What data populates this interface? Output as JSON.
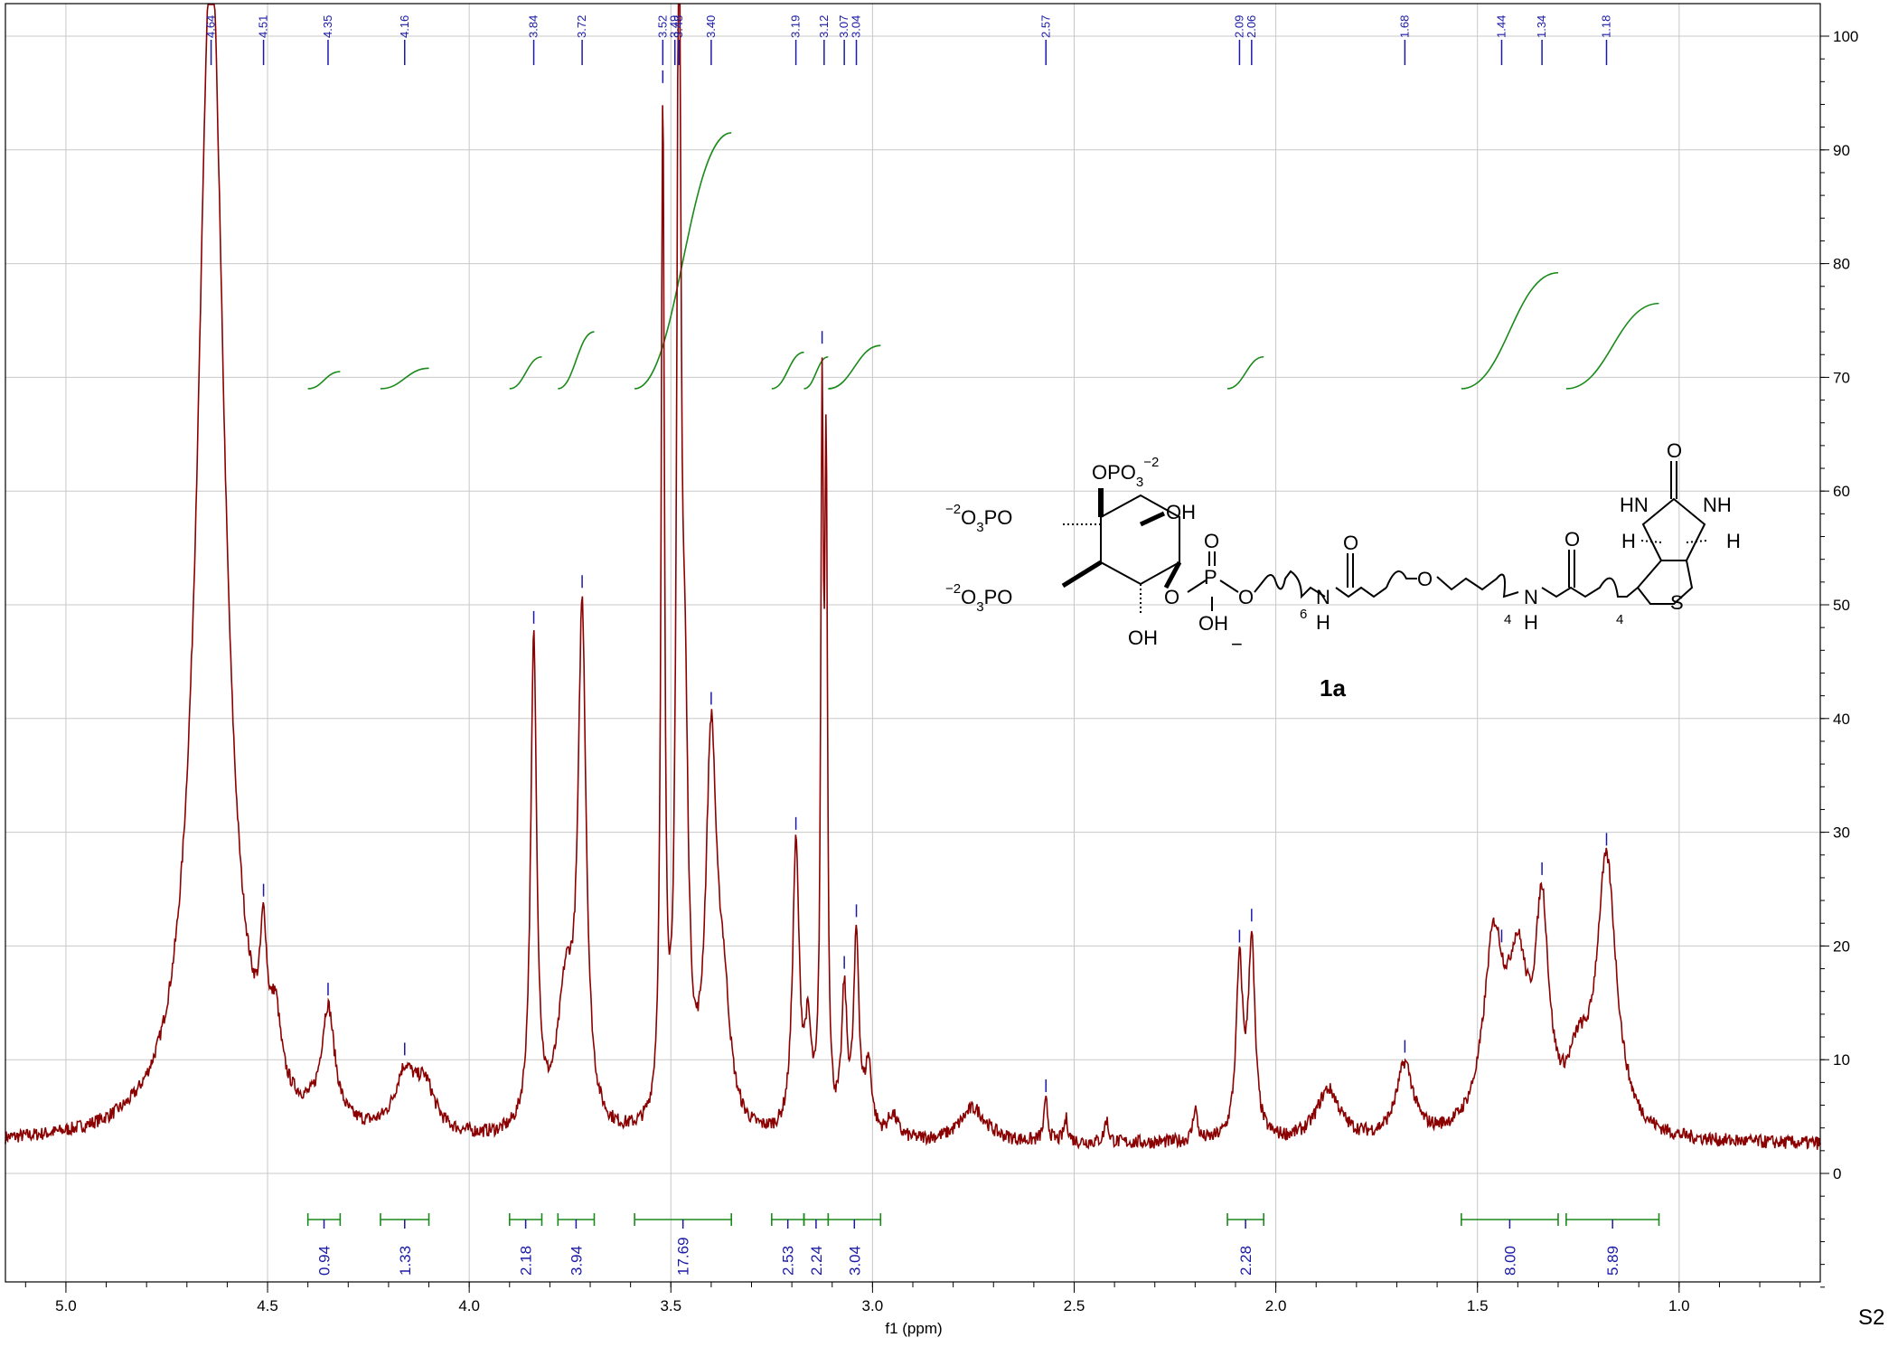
{
  "page_label": "S2",
  "chart_data": {
    "type": "line",
    "xlabel": "f1 (ppm)",
    "xlim": [
      5.15,
      0.65
    ],
    "ylim": [
      -10,
      103
    ],
    "x_ticks": [
      5.0,
      4.5,
      4.0,
      3.5,
      3.0,
      2.5,
      2.0,
      1.5,
      1.0
    ],
    "x_tick_labels": [
      "5.0",
      "4.5",
      "4.0",
      "3.5",
      "3.0",
      "2.5",
      "2.0",
      "1.5",
      "1.0"
    ],
    "y_ticks": [
      0,
      10,
      20,
      30,
      40,
      50,
      60,
      70,
      80,
      90,
      100
    ],
    "y_tick_labels": [
      "0",
      "10",
      "20",
      "30",
      "40",
      "50",
      "60",
      "70",
      "80",
      "90",
      "100"
    ],
    "y_axis_side": "right",
    "grid": true,
    "series_color": "#8b0000",
    "peak_label_color": "#1a1aa6",
    "integral_color": "#1a8a1a",
    "baseline": 2.5,
    "peaks": [
      {
        "ppm": 4.64,
        "height": 105,
        "width": 0.04
      },
      {
        "ppm": 4.51,
        "height": 10.5,
        "width": 0.01
      },
      {
        "ppm": 4.48,
        "height": 6.0,
        "width": 0.015
      },
      {
        "ppm": 4.35,
        "height": 10.0,
        "width": 0.02
      },
      {
        "ppm": 4.16,
        "height": 5.0,
        "width": 0.03
      },
      {
        "ppm": 4.11,
        "height": 4.0,
        "width": 0.03
      },
      {
        "ppm": 3.84,
        "height": 43.0,
        "width": 0.009
      },
      {
        "ppm": 3.76,
        "height": 12.0,
        "width": 0.025
      },
      {
        "ppm": 3.72,
        "height": 44.0,
        "width": 0.012
      },
      {
        "ppm": 3.52,
        "height": 88.0,
        "width": 0.005
      },
      {
        "ppm": 3.48,
        "height": 105,
        "width": 0.006
      },
      {
        "ppm": 3.465,
        "height": 30.0,
        "width": 0.01
      },
      {
        "ppm": 3.4,
        "height": 33.0,
        "width": 0.016
      },
      {
        "ppm": 3.37,
        "height": 10.0,
        "width": 0.02
      },
      {
        "ppm": 3.19,
        "height": 25.0,
        "width": 0.01
      },
      {
        "ppm": 3.16,
        "height": 8.0,
        "width": 0.01
      },
      {
        "ppm": 3.125,
        "height": 60.0,
        "width": 0.004
      },
      {
        "ppm": 3.115,
        "height": 55.0,
        "width": 0.004
      },
      {
        "ppm": 3.07,
        "height": 12.0,
        "width": 0.008
      },
      {
        "ppm": 3.04,
        "height": 17.0,
        "width": 0.008
      },
      {
        "ppm": 3.01,
        "height": 6.0,
        "width": 0.01
      },
      {
        "ppm": 2.95,
        "height": 2.0,
        "width": 0.015
      },
      {
        "ppm": 2.75,
        "height": 3.0,
        "width": 0.04
      },
      {
        "ppm": 2.57,
        "height": 3.5,
        "width": 0.006
      },
      {
        "ppm": 2.52,
        "height": 2.0,
        "width": 0.006
      },
      {
        "ppm": 2.42,
        "height": 2.0,
        "width": 0.006
      },
      {
        "ppm": 2.2,
        "height": 3.0,
        "width": 0.006
      },
      {
        "ppm": 2.09,
        "height": 15.0,
        "width": 0.01
      },
      {
        "ppm": 2.06,
        "height": 17.0,
        "width": 0.01
      },
      {
        "ppm": 1.87,
        "height": 4.5,
        "width": 0.035
      },
      {
        "ppm": 1.68,
        "height": 6.5,
        "width": 0.025
      },
      {
        "ppm": 1.46,
        "height": 16.0,
        "width": 0.03
      },
      {
        "ppm": 1.4,
        "height": 13.0,
        "width": 0.03
      },
      {
        "ppm": 1.34,
        "height": 18.0,
        "width": 0.02
      },
      {
        "ppm": 1.25,
        "height": 5.0,
        "width": 0.03
      },
      {
        "ppm": 1.18,
        "height": 24.0,
        "width": 0.03
      }
    ],
    "peak_labels": [
      "4.64",
      "4.51",
      "4.35",
      "4.16",
      "3.84",
      "3.72",
      "3.52",
      "3.49",
      "3.48",
      "3.40",
      "3.19",
      "3.12",
      "3.07",
      "3.04",
      "2.57",
      "2.09",
      "2.06",
      "1.68",
      "1.44",
      "1.34",
      "1.18"
    ],
    "peak_label_ppm": [
      4.64,
      4.51,
      4.35,
      4.16,
      3.84,
      3.72,
      3.52,
      3.49,
      3.48,
      3.4,
      3.19,
      3.12,
      3.07,
      3.04,
      2.57,
      2.09,
      2.06,
      1.68,
      1.44,
      1.34,
      1.18
    ],
    "peak_marker_ppm": [
      4.51,
      4.35,
      4.16,
      3.84,
      3.72,
      3.52,
      3.4,
      3.19,
      3.125,
      3.07,
      3.04,
      2.57,
      2.09,
      2.06,
      1.68,
      1.44,
      1.34,
      1.18
    ],
    "integrals": [
      {
        "from": 4.4,
        "to": 4.32,
        "value": "0.94",
        "y_start": 69,
        "y_end": 70.5
      },
      {
        "from": 4.22,
        "to": 4.1,
        "value": "1.33",
        "y_start": 69,
        "y_end": 70.8
      },
      {
        "from": 3.9,
        "to": 3.82,
        "value": "2.18",
        "y_start": 69,
        "y_end": 71.8
      },
      {
        "from": 3.78,
        "to": 3.69,
        "value": "3.94",
        "y_start": 69,
        "y_end": 74
      },
      {
        "from": 3.59,
        "to": 3.35,
        "value": "17.69",
        "y_start": 69,
        "y_end": 91.5
      },
      {
        "from": 3.25,
        "to": 3.17,
        "value": "2.53",
        "y_start": 69,
        "y_end": 72.2
      },
      {
        "from": 3.17,
        "to": 3.11,
        "value": "2.24",
        "y_start": 69,
        "y_end": 71.8
      },
      {
        "from": 3.11,
        "to": 2.98,
        "value": "3.04",
        "y_start": 69,
        "y_end": 72.8
      },
      {
        "from": 2.12,
        "to": 2.03,
        "value": "2.28",
        "y_start": 69,
        "y_end": 71.8
      },
      {
        "from": 1.54,
        "to": 1.3,
        "value": "8.00",
        "y_start": 69,
        "y_end": 79.2
      },
      {
        "from": 1.28,
        "to": 1.05,
        "value": "5.89",
        "y_start": 69,
        "y_end": 76.5
      }
    ]
  },
  "structure": {
    "compound_label": "1a",
    "groups": {
      "opo3_top": "OPO",
      "opo3_top_sub": "3",
      "opo3_top_sup": "−2",
      "o3po_left_1_sup": "−2",
      "o3po_left_1": "O",
      "o3po_left_1_sub": "3",
      "o3po_left_1_tail": "PO",
      "o3po_left_2_sup": "−2",
      "o3po_left_2": "O",
      "o3po_left_2_sub": "3",
      "o3po_left_2_tail": "PO",
      "oh_right": "OH",
      "oh_bottom": "OH",
      "o_link": "O",
      "p": "P",
      "p_double_o": "O",
      "o_after_p": "O",
      "p_oh": "OH",
      "minus": "−",
      "n_6": "6",
      "nh1_n": "N",
      "nh1_h": "H",
      "c_o_1": "O",
      "ether_o": "O",
      "n_4a": "4",
      "nh2_n": "N",
      "nh2_h": "H",
      "c_o_2": "O",
      "n_4b": "4",
      "s": "S",
      "hn": "HN",
      "nh": "NH",
      "urea_o": "O",
      "h_left": "H",
      "h_right": "H"
    }
  }
}
